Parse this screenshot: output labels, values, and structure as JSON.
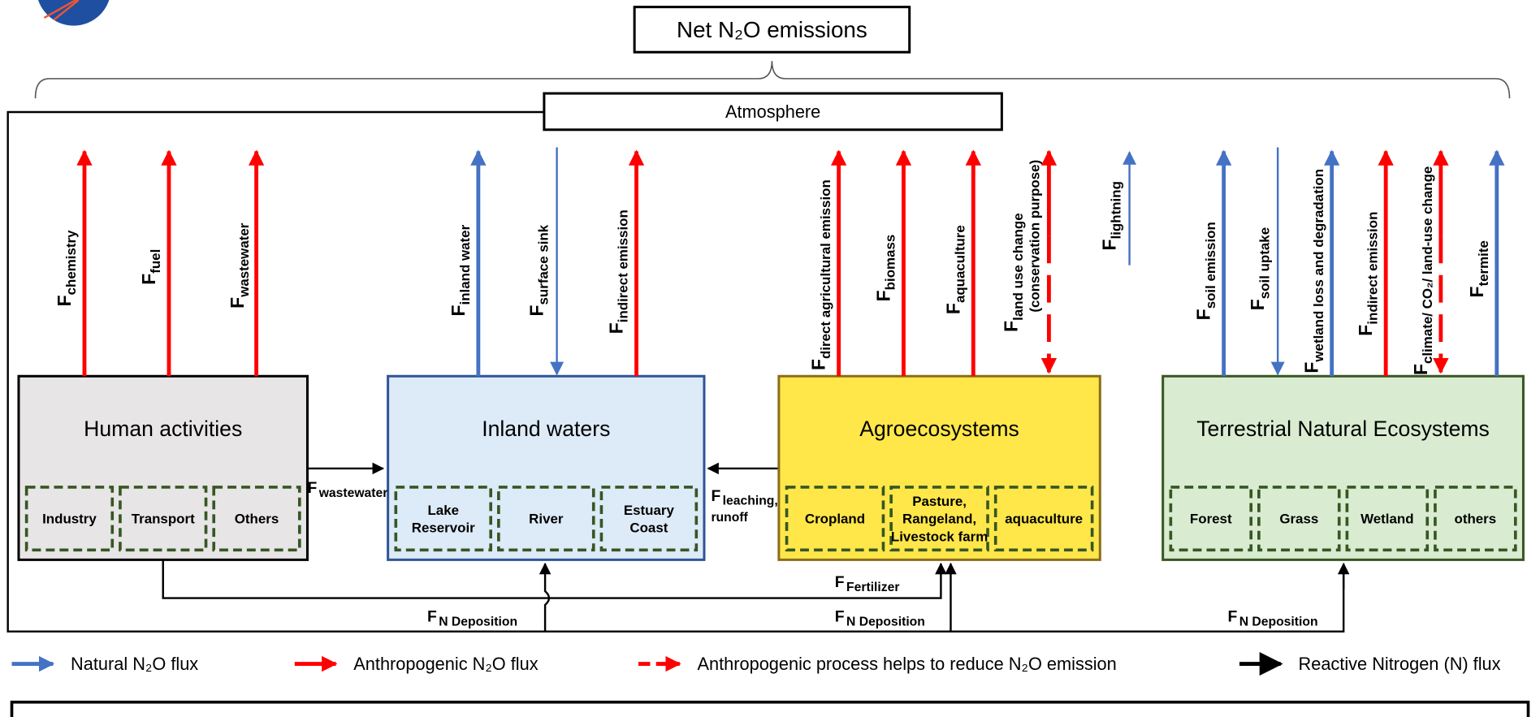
{
  "title": "Net N₂O emissions",
  "atmosphere": "Atmosphere",
  "boxes": [
    {
      "label": "Human activities",
      "parts": [
        [
          "Industry"
        ],
        [
          "Transport"
        ],
        [
          "Others"
        ]
      ]
    },
    {
      "label": "Inland waters",
      "parts": [
        [
          "Lake",
          "Reservoir"
        ],
        [
          "River"
        ],
        [
          "Estuary",
          "Coast"
        ]
      ]
    },
    {
      "label": "Agroecosystems",
      "parts": [
        [
          "Cropland"
        ],
        [
          "Pasture,",
          "Rangeland,",
          "Livestock farm"
        ],
        [
          "aquaculture"
        ]
      ]
    },
    {
      "label": "Terrestrial Natural Ecosystems",
      "parts": [
        [
          "Forest"
        ],
        [
          "Grass"
        ],
        [
          "Wetland"
        ],
        [
          "others"
        ]
      ]
    }
  ],
  "fluxes": [
    {
      "symbol": "F",
      "subscript": [
        "chemistry"
      ]
    },
    {
      "symbol": "F",
      "subscript": [
        "fuel"
      ]
    },
    {
      "symbol": "F",
      "subscript": [
        "wastewater"
      ]
    },
    {
      "symbol": "F",
      "subscript": [
        "inland water"
      ]
    },
    {
      "symbol": "F",
      "subscript": [
        "surface sink"
      ]
    },
    {
      "symbol": "F",
      "subscript": [
        "indirect emission"
      ]
    },
    {
      "symbol": "F",
      "subscript": [
        "direct agricultural emission"
      ]
    },
    {
      "symbol": "F",
      "subscript": [
        "biomass"
      ]
    },
    {
      "symbol": "F",
      "subscript": [
        "aquaculture"
      ]
    },
    {
      "symbol": "F",
      "subscript": [
        "land use change",
        "(conservation purpose)"
      ]
    },
    {
      "symbol": "F",
      "subscript": [
        "lightning"
      ]
    },
    {
      "symbol": "F",
      "subscript": [
        "soil emission"
      ]
    },
    {
      "symbol": "F",
      "subscript": [
        "soil uptake"
      ]
    },
    {
      "symbol": "F",
      "subscript": [
        "wetland loss and degradation"
      ]
    },
    {
      "symbol": "F",
      "subscript": [
        "indirect emission"
      ]
    },
    {
      "symbol": "F",
      "subscript": [
        "climate/ CO₂/ land-use change"
      ]
    },
    {
      "symbol": "F",
      "subscript": [
        "termite"
      ]
    }
  ],
  "nitrogen_fluxes": [
    {
      "symbol": "F",
      "subscript": [
        "wastewater"
      ]
    },
    {
      "symbol": "F",
      "subscript": [
        "leaching,",
        "runoff"
      ]
    },
    {
      "symbol": "F",
      "subscript": [
        "Fertilizer"
      ]
    },
    {
      "symbol": "F",
      "subscript": [
        "N Deposition"
      ]
    },
    {
      "symbol": "F",
      "subscript": [
        "N Deposition"
      ]
    },
    {
      "symbol": "F",
      "subscript": [
        "N Deposition"
      ]
    }
  ],
  "legend": [
    "Natural N₂O flux",
    "Anthropogenic N₂O flux",
    "Anthropogenic process helps to reduce N₂O emission",
    "Reactive Nitrogen (N) flux"
  ]
}
